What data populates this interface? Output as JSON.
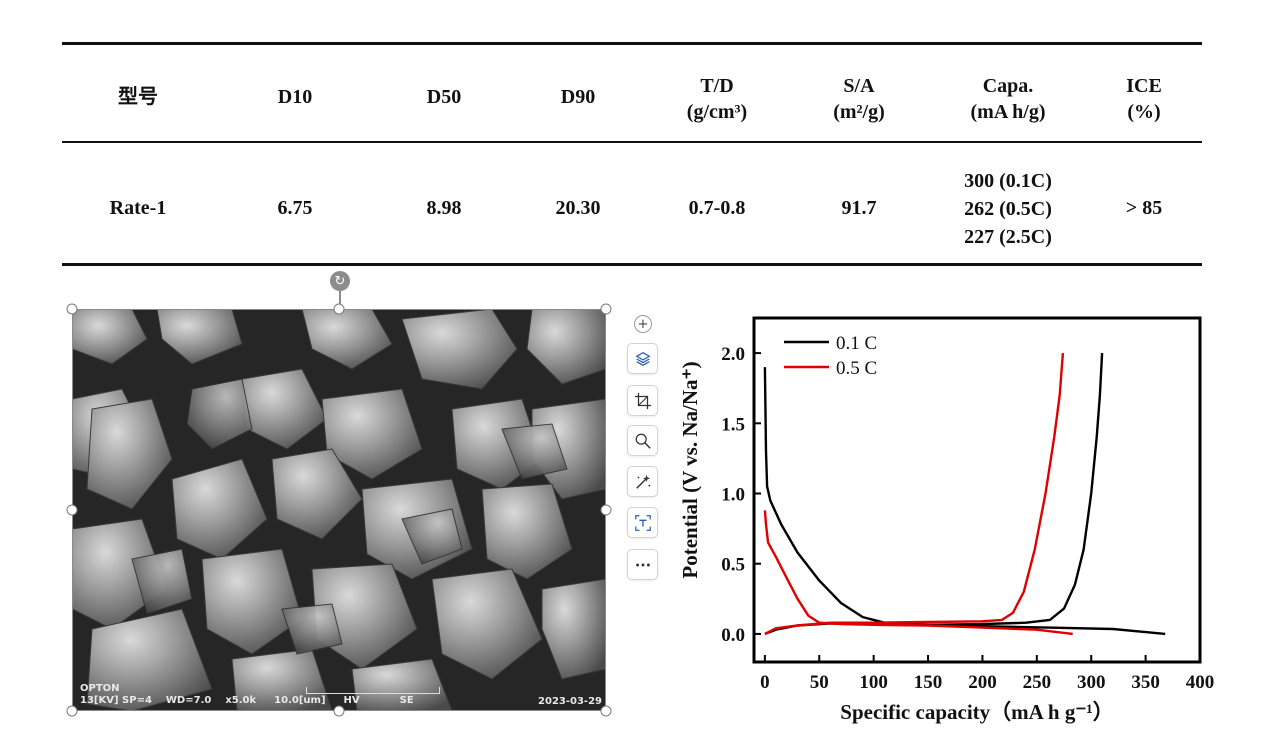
{
  "table": {
    "headers": [
      {
        "line1": "型号",
        "line2": ""
      },
      {
        "line1": "D10",
        "line2": ""
      },
      {
        "line1": "D50",
        "line2": ""
      },
      {
        "line1": "D90",
        "line2": ""
      },
      {
        "line1": "T/D",
        "line2": "(g/cm³)"
      },
      {
        "line1": "S/A",
        "line2": "(m²/g)"
      },
      {
        "line1": "Capa.",
        "line2": "(mA h/g)"
      },
      {
        "line1": "ICE",
        "line2": "(%)"
      }
    ],
    "row": {
      "model": "Rate-1",
      "d10": "6.75",
      "d50": "8.98",
      "d90": "20.30",
      "td": "0.7-0.8",
      "sa": "91.7",
      "capa": [
        "300 (0.1C)",
        "262 (0.5C)",
        "227 (2.5C)"
      ],
      "ice": "> 85"
    }
  },
  "sem": {
    "brand": "OPTON",
    "kv": "13[KV]",
    "sp": "SP=4",
    "wd": "WD=7.0",
    "mag": "x5.0k",
    "scale": "10.0[um]",
    "hv": "HV",
    "se": "SE",
    "date": "2023-03-29"
  },
  "toolbar": {
    "items": [
      "add-icon",
      "layers-icon",
      "crop-icon",
      "zoom-icon",
      "magic-wand-icon",
      "text-extract-icon",
      "more-icon"
    ]
  },
  "chart_data": {
    "type": "line",
    "xlabel": "Specific capacity（mA h g⁻¹）",
    "ylabel": "Potential (V vs. Na/Na⁺)",
    "xlim": [
      -10,
      400
    ],
    "ylim": [
      -0.2,
      2.25
    ],
    "xticks": [
      0,
      50,
      100,
      150,
      200,
      250,
      300,
      350,
      400
    ],
    "yticks": [
      0.0,
      0.5,
      1.0,
      1.5,
      2.0
    ],
    "legend_position": "top-left",
    "series": [
      {
        "name": "0.1 C",
        "color": "#000000",
        "discharge": [
          [
            0,
            1.9
          ],
          [
            1,
            1.3
          ],
          [
            2,
            1.05
          ],
          [
            5,
            0.95
          ],
          [
            15,
            0.78
          ],
          [
            30,
            0.58
          ],
          [
            50,
            0.38
          ],
          [
            70,
            0.22
          ],
          [
            90,
            0.12
          ],
          [
            110,
            0.08
          ],
          [
            150,
            0.065
          ],
          [
            200,
            0.055
          ],
          [
            260,
            0.045
          ],
          [
            320,
            0.035
          ],
          [
            368,
            0.0
          ]
        ],
        "charge": [
          [
            0,
            0.0
          ],
          [
            10,
            0.03
          ],
          [
            30,
            0.06
          ],
          [
            60,
            0.075
          ],
          [
            100,
            0.07
          ],
          [
            150,
            0.065
          ],
          [
            200,
            0.07
          ],
          [
            240,
            0.08
          ],
          [
            262,
            0.1
          ],
          [
            275,
            0.18
          ],
          [
            285,
            0.35
          ],
          [
            293,
            0.6
          ],
          [
            300,
            1.0
          ],
          [
            305,
            1.4
          ],
          [
            308,
            1.7
          ],
          [
            310,
            2.0
          ]
        ]
      },
      {
        "name": "0.5 C",
        "color": "#e00000",
        "discharge": [
          [
            0,
            0.88
          ],
          [
            1,
            0.78
          ],
          [
            3,
            0.65
          ],
          [
            10,
            0.55
          ],
          [
            20,
            0.4
          ],
          [
            30,
            0.25
          ],
          [
            40,
            0.13
          ],
          [
            50,
            0.08
          ],
          [
            70,
            0.07
          ],
          [
            100,
            0.065
          ],
          [
            150,
            0.06
          ],
          [
            200,
            0.045
          ],
          [
            250,
            0.03
          ],
          [
            283,
            0.0
          ]
        ],
        "charge": [
          [
            0,
            0.0
          ],
          [
            10,
            0.04
          ],
          [
            30,
            0.06
          ],
          [
            60,
            0.08
          ],
          [
            100,
            0.08
          ],
          [
            150,
            0.085
          ],
          [
            200,
            0.09
          ],
          [
            218,
            0.1
          ],
          [
            228,
            0.15
          ],
          [
            238,
            0.3
          ],
          [
            248,
            0.6
          ],
          [
            258,
            1.0
          ],
          [
            266,
            1.4
          ],
          [
            271,
            1.7
          ],
          [
            274,
            2.0
          ]
        ]
      }
    ]
  }
}
